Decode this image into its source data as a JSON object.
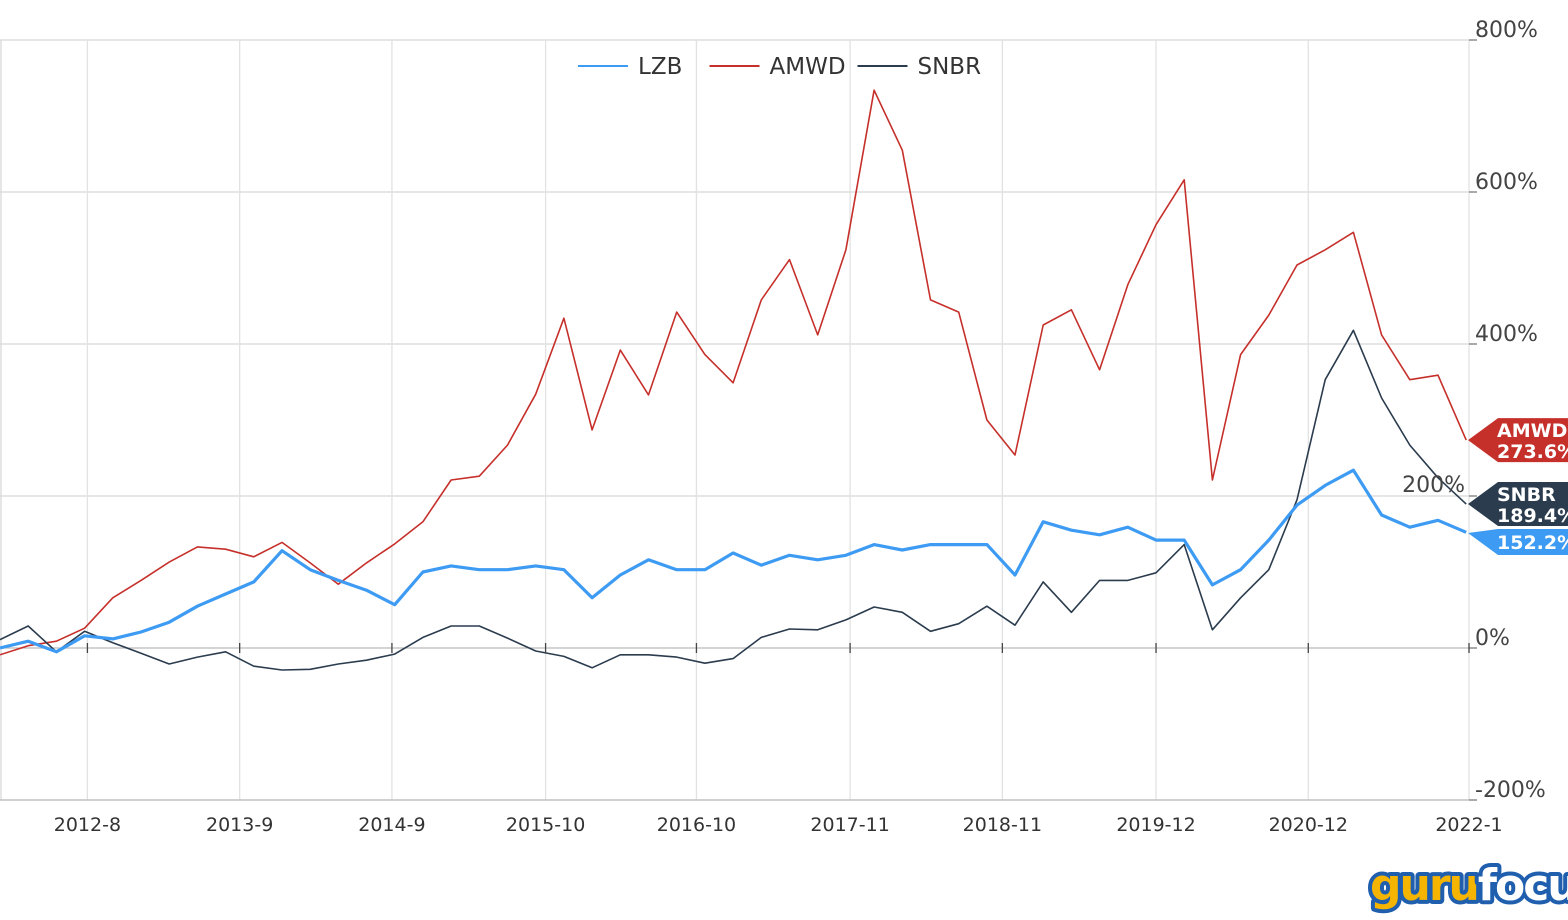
{
  "chart_data": {
    "type": "line",
    "title": "",
    "xlabel": "",
    "ylabel": "",
    "x_unit": "decimal year",
    "xlim": [
      2012.0,
      2022.42
    ],
    "ylim": [
      -200,
      800
    ],
    "grid": true,
    "legend_position": "top-center",
    "x": [
      2012.0,
      2012.2,
      2012.4,
      2012.6,
      2012.8,
      2013.0,
      2013.2,
      2013.4,
      2013.6,
      2013.8,
      2014.0,
      2014.2,
      2014.4,
      2014.6,
      2014.8,
      2015.0,
      2015.2,
      2015.4,
      2015.6,
      2015.8,
      2016.0,
      2016.2,
      2016.4,
      2016.6,
      2016.8,
      2017.0,
      2017.2,
      2017.4,
      2017.6,
      2017.8,
      2018.0,
      2018.2,
      2018.4,
      2018.6,
      2018.8,
      2019.0,
      2019.2,
      2019.4,
      2019.6,
      2019.8,
      2020.0,
      2020.2,
      2020.4,
      2020.6,
      2020.8,
      2021.0,
      2021.2,
      2021.4,
      2021.6,
      2021.8,
      2022.0,
      2022.2,
      2022.4
    ],
    "x_ticks": [
      {
        "value": 2012.62,
        "label": "2012-8"
      },
      {
        "value": 2013.7,
        "label": "2013-9"
      },
      {
        "value": 2014.78,
        "label": "2014-9"
      },
      {
        "value": 2015.87,
        "label": "2015-10"
      },
      {
        "value": 2016.94,
        "label": "2016-10"
      },
      {
        "value": 2018.03,
        "label": "2017-11"
      },
      {
        "value": 2019.11,
        "label": "2018-11"
      },
      {
        "value": 2020.2,
        "label": "2019-12"
      },
      {
        "value": 2021.28,
        "label": "2020-12"
      },
      {
        "value": 2022.42,
        "label": "2022-1"
      }
    ],
    "y_ticks": [
      {
        "value": 800,
        "label": "800%"
      },
      {
        "value": 600,
        "label": "600%"
      },
      {
        "value": 400,
        "label": "400%"
      },
      {
        "value": 200,
        "label": "200%"
      },
      {
        "value": 0,
        "label": "0%"
      },
      {
        "value": -200,
        "label": "-200%"
      }
    ],
    "series": [
      {
        "name": "LZB",
        "color": "#3d9bf3",
        "width": 3.2,
        "end_label": "152.2%",
        "values": [
          0,
          9,
          -5,
          16,
          12,
          21,
          34,
          55,
          71,
          87,
          128,
          103,
          89,
          76,
          57,
          100,
          108,
          103,
          103,
          108,
          103,
          66,
          96,
          116,
          103,
          103,
          125,
          109,
          122,
          116,
          122,
          136,
          129,
          136,
          136,
          136,
          96,
          166,
          155,
          149,
          159,
          142,
          142,
          83,
          103,
          142,
          188,
          214,
          234,
          175,
          159,
          168,
          152.2
        ]
      },
      {
        "name": "AMWD",
        "color": "#c6302b",
        "width": 1.6,
        "end_label": "273.6%",
        "values": [
          -9,
          3,
          9,
          26,
          66,
          89,
          113,
          133,
          130,
          120,
          139,
          112,
          84,
          112,
          137,
          166,
          221,
          226,
          267,
          334,
          434,
          287,
          392,
          333,
          442,
          386,
          349,
          458,
          511,
          412,
          524,
          734,
          655,
          458,
          442,
          300,
          254,
          425,
          445,
          366,
          478,
          557,
          616,
          221,
          386,
          438,
          504,
          524,
          547,
          412,
          353,
          359,
          273.6
        ]
      },
      {
        "name": "SNBR",
        "color": "#2b3c4e",
        "width": 1.6,
        "end_label": "189.4%",
        "values": [
          11,
          29,
          -5,
          22,
          7,
          -7,
          -21,
          -12,
          -5,
          -24,
          -29,
          -28,
          -21,
          -16,
          -8,
          14,
          29,
          29,
          13,
          -4,
          -11,
          -26,
          -9,
          -9,
          -12,
          -20,
          -14,
          14,
          25,
          24,
          37,
          54,
          47,
          22,
          32,
          55,
          30,
          87,
          47,
          89,
          89,
          99,
          136,
          24,
          66,
          103,
          195,
          353,
          418,
          329,
          267,
          224,
          189.4
        ]
      }
    ]
  },
  "logo": {
    "part1": "guru",
    "part2": "focus"
  }
}
